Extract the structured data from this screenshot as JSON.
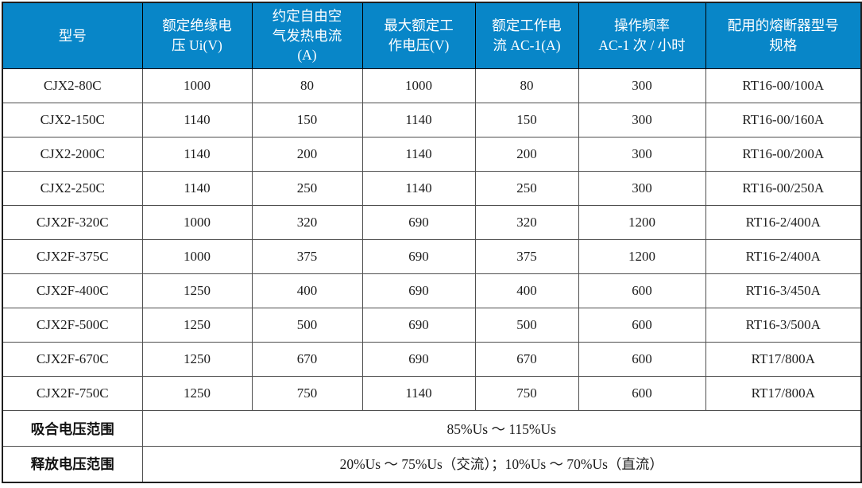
{
  "theme": {
    "header_bg": "#0886c8",
    "header_text": "#ffffff",
    "grid_color": "#4f4f4f",
    "outer_border": "#1f1f1f",
    "text_color": "#1c1c1c"
  },
  "table": {
    "columns": [
      [
        "型号"
      ],
      [
        "额定绝缘电",
        "压 Ui(V)"
      ],
      [
        "约定自由空",
        "气发热电流",
        "(A)"
      ],
      [
        "最大额定工",
        "作电压(V)"
      ],
      [
        "额定工作电",
        "流 AC-1(A)"
      ],
      [
        "操作频率",
        "AC-1 次 / 小时"
      ],
      [
        "配用的熔断器型号",
        "规格"
      ]
    ],
    "rows": [
      [
        "CJX2-80C",
        "1000",
        "80",
        "1000",
        "80",
        "300",
        "RT16-00/100A"
      ],
      [
        "CJX2-150C",
        "1140",
        "150",
        "1140",
        "150",
        "300",
        "RT16-00/160A"
      ],
      [
        "CJX2-200C",
        "1140",
        "200",
        "1140",
        "200",
        "300",
        "RT16-00/200A"
      ],
      [
        "CJX2-250C",
        "1140",
        "250",
        "1140",
        "250",
        "300",
        "RT16-00/250A"
      ],
      [
        "CJX2F-320C",
        "1000",
        "320",
        "690",
        "320",
        "1200",
        "RT16-2/400A"
      ],
      [
        "CJX2F-375C",
        "1000",
        "375",
        "690",
        "375",
        "1200",
        "RT16-2/400A"
      ],
      [
        "CJX2F-400C",
        "1250",
        "400",
        "690",
        "400",
        "600",
        "RT16-3/450A"
      ],
      [
        "CJX2F-500C",
        "1250",
        "500",
        "690",
        "500",
        "600",
        "RT16-3/500A"
      ],
      [
        "CJX2F-670C",
        "1250",
        "670",
        "690",
        "670",
        "600",
        "RT17/800A"
      ],
      [
        "CJX2F-750C",
        "1250",
        "750",
        "1140",
        "750",
        "600",
        "RT17/800A"
      ]
    ],
    "footer_rows": [
      {
        "label": "吸合电压范围",
        "value": "85%Us ～ 115%Us"
      },
      {
        "label": "释放电压范围",
        "value": "20%Us ～ 75%Us（交流）；10%Us ～ 70%Us（直流）"
      }
    ]
  }
}
